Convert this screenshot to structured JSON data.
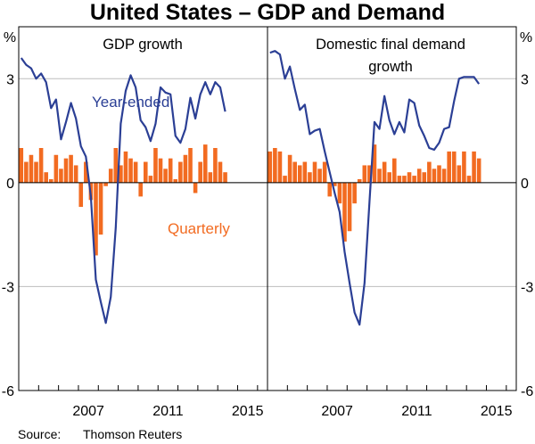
{
  "chart_data": {
    "type": "bar+line",
    "title": "United States – GDP and Demand",
    "unit_left": "%",
    "unit_right": "%",
    "ylim": [
      -6,
      4.5
    ],
    "yticks": [
      -6,
      -3,
      0,
      3
    ],
    "ytick_labels": [
      "-6",
      "-3",
      "0",
      "3"
    ],
    "xlim": [
      2004,
      2016.5
    ],
    "xticks": [
      2007,
      2011,
      2015
    ],
    "xtick_labels": [
      "2007",
      "2011",
      "2015"
    ],
    "source_label": "Source:",
    "source_value": "Thomson Reuters",
    "colors": {
      "line": "#2b3f95",
      "bar": "#f26b21",
      "grid": "#bdbdbd"
    },
    "panels": [
      {
        "title_lines": [
          "GDP growth"
        ],
        "line_label": "Year-ended",
        "bar_label": "Quarterly",
        "series": [
          {
            "name": "Year-ended",
            "type": "line",
            "start": 2004.0,
            "step": 0.25,
            "values": [
              3.6,
              3.4,
              3.3,
              3.0,
              3.15,
              2.9,
              2.15,
              2.4,
              1.25,
              1.75,
              2.3,
              1.85,
              1.05,
              0.75,
              -0.4,
              -2.8,
              -3.45,
              -4.05,
              -3.3,
              -1.3,
              1.7,
              2.65,
              3.1,
              2.75,
              1.8,
              1.6,
              1.2,
              1.7,
              2.75,
              2.6,
              2.55,
              1.35,
              1.15,
              1.55,
              2.45,
              1.85,
              2.55,
              2.9,
              2.55,
              2.9,
              2.75,
              2.05
            ]
          },
          {
            "name": "Quarterly",
            "type": "bar",
            "start": 2004.0,
            "step": 0.25,
            "values": [
              1.0,
              0.6,
              0.8,
              0.6,
              1.0,
              0.3,
              0.1,
              0.8,
              0.4,
              0.7,
              0.8,
              0.5,
              -0.7,
              0.6,
              -0.5,
              -2.1,
              -1.5,
              -0.1,
              0.4,
              1.0,
              0.5,
              0.9,
              0.7,
              0.6,
              -0.4,
              0.6,
              0.2,
              1.0,
              0.7,
              0.4,
              0.7,
              0.1,
              0.6,
              0.8,
              1.0,
              -0.3,
              0.6,
              1.1,
              0.3,
              1.0,
              0.6,
              0.3
            ]
          }
        ]
      },
      {
        "title_lines": [
          "Domestic final demand",
          "growth"
        ],
        "series": [
          {
            "name": "Year-ended",
            "type": "line",
            "start": 2004.0,
            "step": 0.25,
            "values": [
              3.75,
              3.8,
              3.7,
              3.0,
              3.35,
              2.7,
              2.1,
              2.25,
              1.4,
              1.5,
              1.55,
              0.9,
              0.3,
              -0.3,
              -0.85,
              -2.0,
              -2.9,
              -3.75,
              -4.1,
              -2.9,
              -0.55,
              1.75,
              1.55,
              2.5,
              1.8,
              1.4,
              1.75,
              1.45,
              2.4,
              2.3,
              1.65,
              1.35,
              1.0,
              0.95,
              1.15,
              1.55,
              1.6,
              2.35,
              3.0,
              3.05,
              3.05,
              3.05,
              2.85
            ]
          },
          {
            "name": "Quarterly",
            "type": "bar",
            "start": 2004.0,
            "step": 0.25,
            "values": [
              0.9,
              1.0,
              0.9,
              0.2,
              0.8,
              0.6,
              0.5,
              0.6,
              0.3,
              0.6,
              0.4,
              0.6,
              -0.4,
              -0.1,
              -0.6,
              -1.7,
              -1.4,
              -0.6,
              0.1,
              0.5,
              0.5,
              1.1,
              0.4,
              0.6,
              0.3,
              0.7,
              0.2,
              0.2,
              0.3,
              0.2,
              0.4,
              0.3,
              0.6,
              0.4,
              0.5,
              0.4,
              0.9,
              0.9,
              0.5,
              0.9,
              0.2,
              0.9,
              0.7
            ]
          }
        ]
      }
    ]
  }
}
